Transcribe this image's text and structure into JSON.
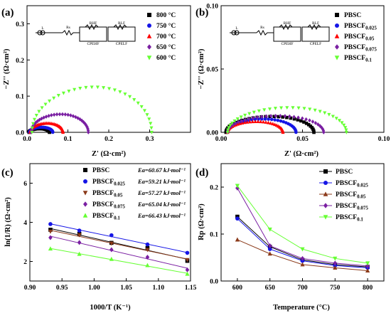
{
  "colors": {
    "black": "#000000",
    "red": "#ff0000",
    "blue": "#1515e6",
    "brown": "#8b3a1a",
    "purple": "#7a1fa2",
    "green": "#66ff33"
  },
  "circuit": {
    "labels": [
      "L",
      "Rs",
      "RHF",
      "RLF",
      "CPEHF",
      "CPELF"
    ]
  },
  "chart_data": [
    {
      "panel": "(a)",
      "type": "scatter",
      "xlabel": "Z' (Ω·cm²)",
      "ylabel": "−Z'' (Ω·cm²)",
      "xlim": [
        0,
        0.4
      ],
      "ylim": [
        0,
        0.35
      ],
      "xticks": [
        "0.0",
        "0.1",
        "0.2",
        "0.3"
      ],
      "yticks": [
        "0.0",
        "0.1",
        "0.2",
        "0.3"
      ],
      "legend": "top-right",
      "series": [
        {
          "name": "800 °C",
          "marker": "square",
          "color": "black",
          "arc": {
            "start": 0.005,
            "end": 0.055,
            "peak": 0.01
          }
        },
        {
          "name": "750 °C",
          "marker": "circle",
          "color": "blue",
          "arc": {
            "start": 0.006,
            "end": 0.063,
            "peak": 0.014
          }
        },
        {
          "name": "700 °C",
          "marker": "triangle",
          "color": "red",
          "arc": {
            "start": 0.008,
            "end": 0.088,
            "peak": 0.025
          }
        },
        {
          "name": "650 °C",
          "marker": "diamond",
          "color": "purple",
          "arc": {
            "start": 0.01,
            "end": 0.15,
            "peak": 0.05
          }
        },
        {
          "name": "600 °C",
          "marker": "triangle-down",
          "color": "green",
          "arc": {
            "start": 0.012,
            "end": 0.305,
            "peak": 0.125
          }
        }
      ]
    },
    {
      "panel": "(b)",
      "type": "scatter",
      "xlabel": "Z' (Ω·cm²)",
      "ylabel": "−Z'' (Ω·cm²)",
      "xlim": [
        0,
        0.1
      ],
      "ylim": [
        0,
        0.1
      ],
      "xticks": [
        "0.00",
        "0.05",
        "0.10"
      ],
      "yticks": [
        "0.00",
        "0.05",
        "0.10"
      ],
      "legend": "top-right",
      "series": [
        {
          "name": "PBSC",
          "sub": "",
          "marker": "square",
          "color": "black",
          "arc": {
            "start": 0.003,
            "end": 0.057,
            "peak": 0.0125
          }
        },
        {
          "name": "PBSCF",
          "sub": "0.025",
          "marker": "circle",
          "color": "blue",
          "arc": {
            "start": 0.004,
            "end": 0.046,
            "peak": 0.0105
          }
        },
        {
          "name": "PBSCF",
          "sub": "0.05",
          "marker": "triangle",
          "color": "red",
          "arc": {
            "start": 0.004,
            "end": 0.038,
            "peak": 0.0085
          }
        },
        {
          "name": "PBSCF",
          "sub": "0.075",
          "marker": "diamond",
          "color": "purple",
          "arc": {
            "start": 0.004,
            "end": 0.063,
            "peak": 0.013
          }
        },
        {
          "name": "PBSCF",
          "sub": "0.1",
          "marker": "triangle-down",
          "color": "green",
          "arc": {
            "start": 0.004,
            "end": 0.077,
            "peak": 0.0195
          }
        }
      ]
    },
    {
      "panel": "(c)",
      "type": "line",
      "xlabel": "1000/T (K⁻¹)",
      "ylabel": "ln(1/R) (Ω·cm²)",
      "xlim": [
        0.9,
        1.15
      ],
      "ylim": [
        1,
        7
      ],
      "xticks": [
        "0.90",
        "0.95",
        "1.00",
        "1.05",
        "1.10",
        "1.15"
      ],
      "yticks": [
        "2",
        "4",
        "6"
      ],
      "x": [
        0.932,
        0.977,
        1.027,
        1.083,
        1.145
      ],
      "legend": "top",
      "series": [
        {
          "name": "PBSC",
          "sub": "",
          "ea": "Ea=60.67 kJ·mol⁻¹",
          "marker": "square",
          "color": "black",
          "values": [
            3.62,
            3.41,
            2.95,
            2.69,
            2.03
          ]
        },
        {
          "name": "PBSCF",
          "sub": "0.025",
          "ea": "Ea=59.21 kJ·mol⁻¹",
          "marker": "circle",
          "color": "blue",
          "values": [
            3.91,
            3.58,
            3.34,
            2.87,
            2.44
          ]
        },
        {
          "name": "PBSCF",
          "sub": "0.05",
          "ea": "Ea=57.27 kJ·mol⁻¹",
          "marker": "triangle-down",
          "color": "brown",
          "values": [
            3.53,
            3.35,
            2.92,
            2.6,
            2.08
          ]
        },
        {
          "name": "PBSCF",
          "sub": "0.075",
          "ea": "Ea=65.04 kJ·mol⁻¹",
          "marker": "diamond",
          "color": "purple",
          "values": [
            3.22,
            2.97,
            2.6,
            2.22,
            1.57
          ]
        },
        {
          "name": "PBSCF",
          "sub": "0.1",
          "ea": "Ea=66.43 kJ·mol⁻¹",
          "marker": "triangle",
          "color": "green",
          "values": [
            2.65,
            2.38,
            2.12,
            1.8,
            1.36
          ]
        }
      ]
    },
    {
      "panel": "(d)",
      "type": "line",
      "xlabel": "Temperature (°C)",
      "ylabel": "Rp (Ω·cm²)",
      "xlim": [
        575,
        825
      ],
      "ylim": [
        0,
        0.25
      ],
      "xticks": [
        "600",
        "650",
        "700",
        "750",
        "800"
      ],
      "yticks": [
        "0.0",
        "0.1",
        "0.2"
      ],
      "x": [
        600,
        650,
        700,
        750,
        800
      ],
      "legend": "top-right",
      "series": [
        {
          "name": "PBSC",
          "sub": "",
          "marker": "square",
          "color": "black",
          "values": [
            0.137,
            0.073,
            0.045,
            0.035,
            0.03
          ]
        },
        {
          "name": "PBSCF",
          "sub": "0.025",
          "marker": "circle",
          "color": "blue",
          "values": [
            0.133,
            0.068,
            0.043,
            0.033,
            0.028
          ]
        },
        {
          "name": "PBSCF",
          "sub": "0.05",
          "marker": "triangle",
          "color": "brown",
          "values": [
            0.088,
            0.058,
            0.035,
            0.028,
            0.022
          ]
        },
        {
          "name": "PBSCF",
          "sub": "0.075",
          "marker": "diamond",
          "color": "purple",
          "values": [
            0.198,
            0.075,
            0.048,
            0.038,
            0.032
          ]
        },
        {
          "name": "PBSCF",
          "sub": "0.1",
          "marker": "triangle-down",
          "color": "green",
          "values": [
            0.203,
            0.11,
            0.068,
            0.048,
            0.038
          ]
        }
      ]
    }
  ]
}
